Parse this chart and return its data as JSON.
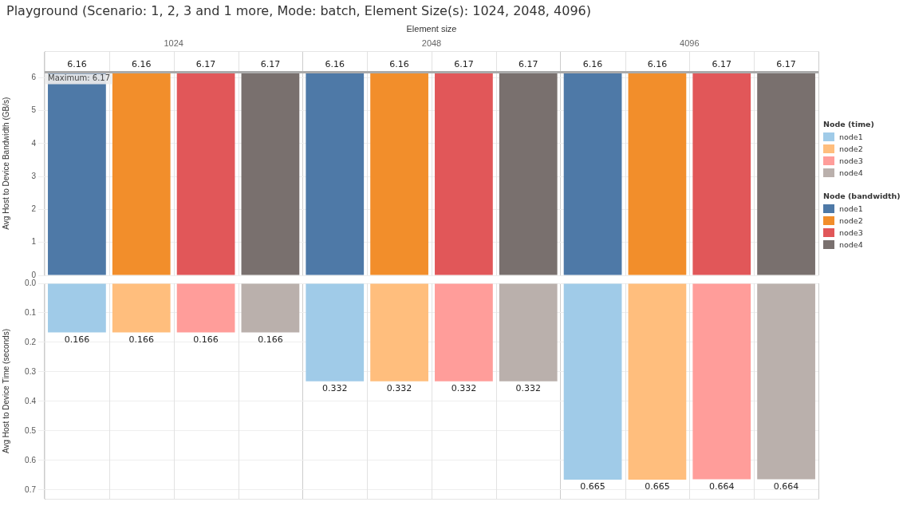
{
  "chart_data": [
    {
      "type": "bar",
      "title": "Playground (Scenario: 1, 2, 3 and 1 more, Mode: batch, Element Size(s): 1024, 2048, 4096)",
      "xlabel": "Element size",
      "ylabel": "Avg Host to Device Bandwidth (GB/s)",
      "legend_title": "Node (bandwidth)",
      "categories": [
        "1024",
        "2048",
        "4096"
      ],
      "series": [
        {
          "name": "node1",
          "color": "#4e79a7",
          "values": [
            6.16,
            6.16,
            6.16
          ]
        },
        {
          "name": "node2",
          "color": "#f28e2b",
          "values": [
            6.16,
            6.16,
            6.16
          ]
        },
        {
          "name": "node3",
          "color": "#e15759",
          "values": [
            6.17,
            6.17,
            6.17
          ]
        },
        {
          "name": "node4",
          "color": "#79706e",
          "values": [
            6.17,
            6.17,
            6.17
          ]
        }
      ],
      "ylim": [
        0,
        6.8
      ],
      "yticks": [
        0,
        1,
        2,
        3,
        4,
        5,
        6
      ],
      "grid": true,
      "legend": "right",
      "data_labels": true,
      "ref_lines": [
        {
          "axis": "y",
          "value": 6.17,
          "label": "Maximum: 6.17",
          "color": "#aaaaaa"
        }
      ]
    },
    {
      "type": "bar",
      "ylabel": "Avg Host to Device Time (seconds)",
      "legend_title": "Node (time)",
      "categories": [
        "1024",
        "2048",
        "4096"
      ],
      "series": [
        {
          "name": "node1",
          "color": "#a0cbe8",
          "values": [
            0.166,
            0.332,
            0.665
          ]
        },
        {
          "name": "node2",
          "color": "#ffbe7d",
          "values": [
            0.166,
            0.332,
            0.665
          ]
        },
        {
          "name": "node3",
          "color": "#ff9d9a",
          "values": [
            0.166,
            0.332,
            0.664
          ]
        },
        {
          "name": "node4",
          "color": "#bab0ac",
          "values": [
            0.166,
            0.332,
            0.664
          ]
        }
      ],
      "ylim": [
        0.73,
        0
      ],
      "yticks": [
        {
          "value": 0,
          "label": "0.0"
        },
        0.1,
        0.2,
        0.3,
        0.4,
        0.5,
        0.6,
        0.7
      ],
      "grid": true,
      "legend": "right",
      "data_labels": true,
      "tick_labels": "y"
    }
  ]
}
